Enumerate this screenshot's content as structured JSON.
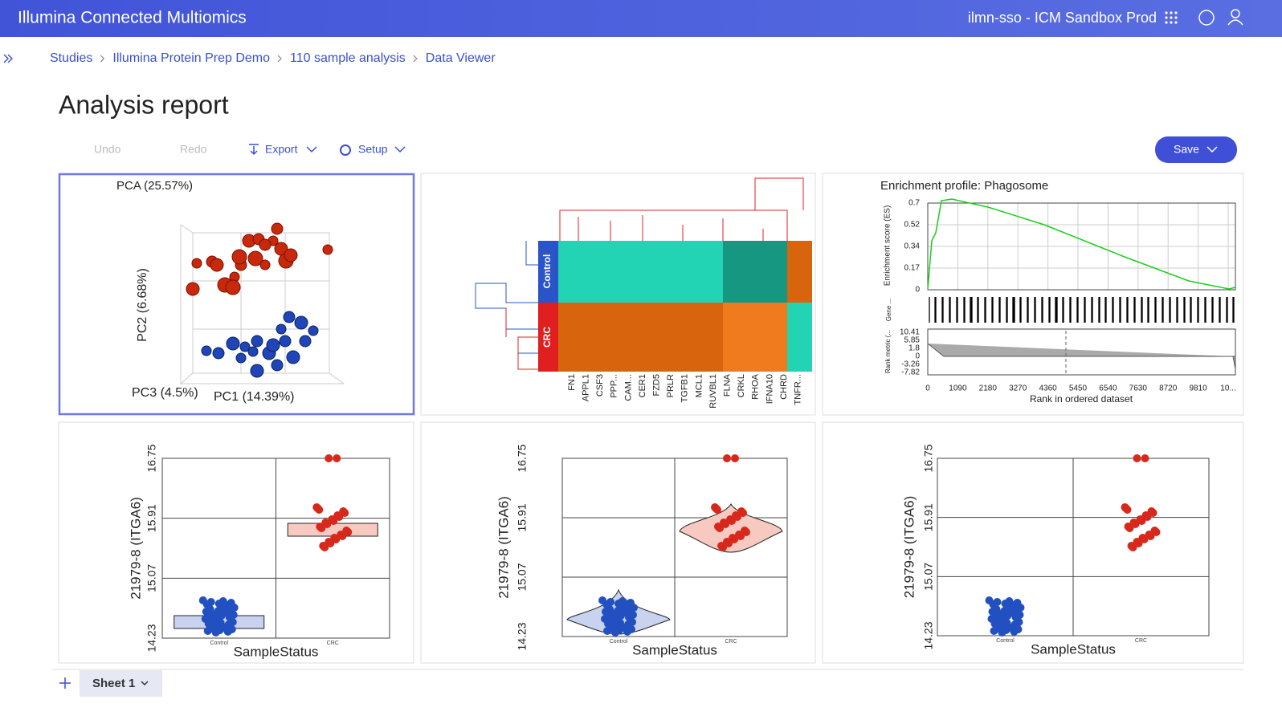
{
  "header": {
    "title": "Illumina Connected Multiomics",
    "workspace": "ilmn-sso - ICM Sandbox Prod"
  },
  "breadcrumbs": [
    "Studies",
    "Illumina Protein Prep Demo",
    "110 sample analysis",
    "Data Viewer"
  ],
  "page_title": "Analysis report",
  "toolbar": {
    "undo": "Undo",
    "redo": "Redo",
    "export": "Export",
    "setup": "Setup",
    "save": "Save"
  },
  "pca": {
    "title": "PCA (25.57%)",
    "y_label": "PC2 (6.68%)",
    "z_label": "PC3 (4.5%)",
    "x_label": "PC1 (14.39%)"
  },
  "heatmap": {
    "groups": [
      "Control",
      "CRC"
    ],
    "genes": [
      "FN1",
      "APPL1",
      "CSF3",
      "PPP...",
      "CAM...",
      "CER1",
      "FZD5",
      "PRLR",
      "TGFB1",
      "MCL1",
      "RUVBL1",
      "FLNA",
      "CRKL",
      "RHOA",
      "IFNA10",
      "CHRD",
      "TNFR..."
    ]
  },
  "enrichment": {
    "title": "Enrichment profile: Phagosome",
    "y_label": "Enrichment score (ES)",
    "yticks": [
      "0.7",
      "0.52",
      "0.34",
      "0.17",
      "0"
    ],
    "hits_label": "Gene ...",
    "metric_label": "Rank metric (...",
    "metric_ticks": [
      "10.41",
      "5.85",
      "1.8",
      "0",
      "-3.26",
      "-7.82"
    ],
    "xticks": [
      "0",
      "1090",
      "2180",
      "3270",
      "4360",
      "5450",
      "6540",
      "7630",
      "8720",
      "9810",
      "10..."
    ],
    "x_label": "Rank in ordered dataset"
  },
  "dot_plots": [
    {
      "y_label": "21979-8 (ITGA6)",
      "yticks": [
        "14.23",
        "15.07",
        "15.91",
        "16.75"
      ],
      "x_label": "SampleStatus",
      "categories": [
        "Control",
        "CRC"
      ]
    },
    {
      "y_label": "21979-8 (ITGA6)",
      "yticks": [
        "14.23",
        "15.07",
        "15.91",
        "16.75"
      ],
      "x_label": "SampleStatus",
      "categories": [
        "Control",
        "CRC"
      ]
    },
    {
      "y_label": "21979-8 (ITGA6)",
      "yticks": [
        "14.23",
        "15.07",
        "15.91",
        "16.75"
      ],
      "x_label": "SampleStatus",
      "categories": [
        "Control",
        "CRC"
      ]
    }
  ],
  "sheets": {
    "tabs": [
      "Sheet 1"
    ]
  }
}
